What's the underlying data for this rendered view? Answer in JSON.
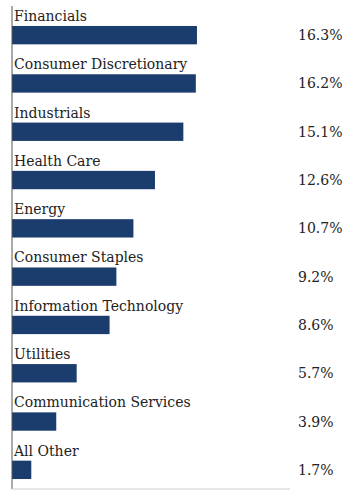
{
  "chart_data": {
    "type": "bar",
    "orientation": "horizontal",
    "categories": [
      "Financials",
      "Consumer Discretionary",
      "Industrials",
      "Health Care",
      "Energy",
      "Consumer Staples",
      "Information Technology",
      "Utilities",
      "Communication Services",
      "All Other"
    ],
    "values": [
      16.3,
      16.2,
      15.1,
      12.6,
      10.7,
      9.2,
      8.6,
      5.7,
      3.9,
      1.7
    ],
    "value_labels": [
      "16.3%",
      "16.2%",
      "15.1%",
      "12.6%",
      "10.7%",
      "9.2%",
      "8.6%",
      "5.7%",
      "3.9%",
      "1.7%"
    ],
    "color": "#1b3d6e",
    "xlim": [
      0,
      24.5
    ],
    "data_labels": true,
    "tick_labels": "y"
  }
}
